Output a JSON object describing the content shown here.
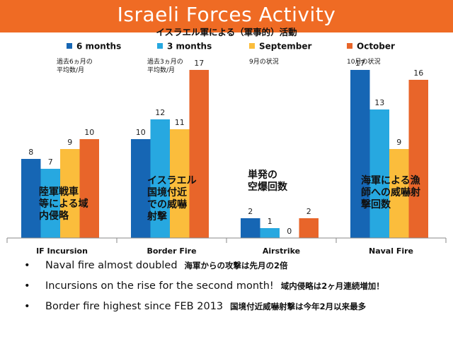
{
  "slide": {
    "title": "Israeli Forces Activity",
    "subtitle": "イスラエル軍による（軍事的）活動"
  },
  "colors": {
    "header": "#ef6b24",
    "axis": "#888888"
  },
  "chart_data": {
    "type": "bar",
    "categories": [
      "IF Incursion",
      "Border Fire",
      "Airstrike",
      "Naval Fire"
    ],
    "series": [
      {
        "name": "6 months",
        "color": "#1666b4",
        "values": [
          8,
          10,
          2,
          17
        ],
        "note": "過去6ヵ月の\n平均数/月"
      },
      {
        "name": "3 months",
        "color": "#27a8e0",
        "values": [
          7,
          12,
          1,
          13
        ],
        "note": "過去3ヵ月の\n平均数/月"
      },
      {
        "name": "September",
        "color": "#fbbd3c",
        "values": [
          9,
          11,
          0,
          9
        ],
        "note": "9月の状況"
      },
      {
        "name": "October",
        "color": "#e8652a",
        "values": [
          10,
          17,
          2,
          16
        ],
        "note": "10月の状況"
      }
    ],
    "ylim": [
      0,
      17
    ],
    "grid": false,
    "legend": "top",
    "annotations": [
      {
        "category": 0,
        "text": "陸軍戦車\n等による域\n内侵略"
      },
      {
        "category": 1,
        "text": "イスラエル\n国境付近\nでの威嚇\n射撃"
      },
      {
        "category": 2,
        "text": "単発の\n空爆回数"
      },
      {
        "category": 3,
        "text": "海軍による漁\n師への威嚇射\n撃回数"
      }
    ]
  },
  "bullets": [
    {
      "text": "Naval fire almost doubled",
      "jp": "海軍からの攻撃は先月の2倍"
    },
    {
      "text": "Incursions on the rise for the second month!",
      "jp": "域内侵略は2ヶ月連続増加！"
    },
    {
      "text": "Border fire highest since FEB 2013",
      "jp": "国境付近威嚇射撃は今年2月以来最多"
    }
  ]
}
